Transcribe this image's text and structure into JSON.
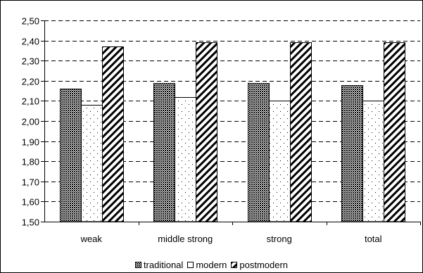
{
  "chart_data": {
    "type": "bar",
    "categories": [
      "weak",
      "middle strong",
      "strong",
      "total"
    ],
    "series": [
      {
        "name": "traditional",
        "values": [
          2.16,
          2.19,
          2.19,
          2.18
        ],
        "pattern": "crosshatch"
      },
      {
        "name": "modern",
        "values": [
          2.08,
          2.12,
          2.1,
          2.1
        ],
        "pattern": "dots"
      },
      {
        "name": "postmodern",
        "values": [
          2.37,
          2.39,
          2.39,
          2.39
        ],
        "pattern": "diagonal"
      }
    ],
    "title": "",
    "xlabel": "",
    "ylabel": "",
    "ylim": [
      1.5,
      2.5
    ],
    "yticks": [
      "1,50",
      "1,60",
      "1,70",
      "1,80",
      "1,90",
      "2,00",
      "2,10",
      "2,20",
      "2,30",
      "2,40",
      "2,50"
    ],
    "grid": "horizontal dashed",
    "legend_position": "bottom",
    "colors": {
      "bar_stroke": "#000000",
      "grid": "#000000",
      "background": "#ffffff"
    }
  }
}
